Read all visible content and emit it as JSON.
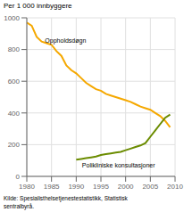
{
  "chart_data": {
    "type": "line",
    "ylabel": "Per 1 000 innbyggere",
    "source": "Kilde: Spesialisthelsetjenestestatistikk, Statistisk\nsentralbyrå.",
    "x": [
      1980,
      1981,
      1982,
      1983,
      1984,
      1985,
      1986,
      1987,
      1988,
      1989,
      1990,
      1991,
      1992,
      1993,
      1994,
      1995,
      1996,
      1997,
      1998,
      1999,
      2000,
      2001,
      2002,
      2003,
      2004,
      2005,
      2006,
      2007,
      2008,
      2009
    ],
    "series": [
      {
        "color": "#F5A800",
        "values": [
          970,
          950,
          880,
          850,
          840,
          830,
          790,
          760,
          700,
          670,
          650,
          620,
          590,
          570,
          550,
          540,
          520,
          510,
          500,
          490,
          480,
          470,
          455,
          440,
          430,
          420,
          400,
          380,
          350,
          310
        ]
      },
      {
        "color": "#6B8C00",
        "values": [
          null,
          null,
          null,
          null,
          null,
          null,
          null,
          null,
          null,
          null,
          105,
          110,
          115,
          120,
          125,
          135,
          140,
          145,
          150,
          155,
          165,
          175,
          185,
          195,
          210,
          250,
          290,
          330,
          370,
          390
        ]
      }
    ],
    "annotations": [
      {
        "text": "Oppholdsdøgn",
        "x": 1983.5,
        "y": 855
      },
      {
        "text": "Polikliniske konsultasjoner",
        "x": 1991,
        "y": 72
      }
    ],
    "xlim": [
      1980,
      2010
    ],
    "ylim": [
      0,
      1000
    ],
    "xticks": [
      1980,
      1985,
      1990,
      1995,
      2000,
      2005,
      2010
    ],
    "yticks": [
      0,
      200,
      400,
      600,
      800,
      1000
    ],
    "grid": true
  }
}
